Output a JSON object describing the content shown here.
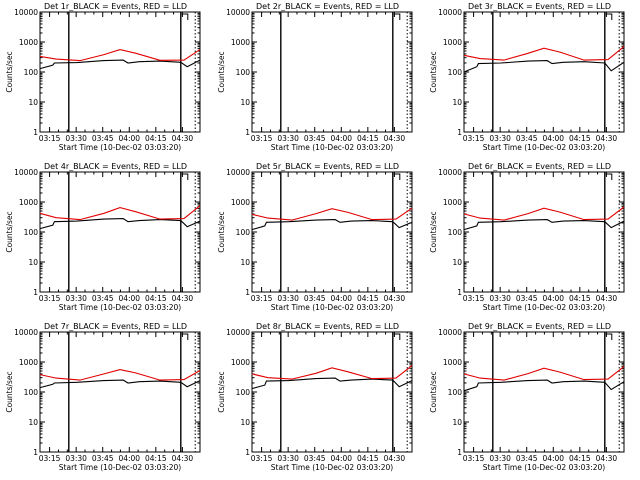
{
  "chart_data": [
    {
      "type": "line",
      "title": "Det 1r_BLACK = Events, RED = LLD",
      "xlabel": "Start Time (10-Dec-02 03:03:20)",
      "ylabel": "Counts/sec",
      "yscale": "log",
      "ylim": [
        1,
        10000
      ],
      "x_ticks": [
        "03:15",
        "03:30",
        "03:45",
        "04:00",
        "04:15",
        "04:30"
      ],
      "y_ticks": [
        "1",
        "10",
        "100",
        "1000",
        "10000"
      ],
      "series": [
        {
          "name": "Events",
          "color": "#000000",
          "x": [
            0,
            8,
            9,
            23,
            40,
            52,
            55,
            62,
            75,
            88,
            92,
            100
          ],
          "y": [
            130,
            170,
            200,
            205,
            240,
            250,
            200,
            220,
            230,
            210,
            150,
            250
          ]
        },
        {
          "name": "LLD",
          "color": "#e00000",
          "x": [
            0,
            10,
            25,
            40,
            50,
            60,
            75,
            90,
            100
          ],
          "y": [
            330,
            270,
            240,
            380,
            560,
            420,
            245,
            250,
            560
          ]
        }
      ]
    },
    {
      "type": "line",
      "title": "Det 2r_BLACK = Events, RED = LLD",
      "xlabel": "Start Time (10-Dec-02 03:03:20)",
      "ylabel": "Counts/sec",
      "yscale": "log",
      "ylim": [
        1,
        10000
      ],
      "x_ticks": [
        "03:15",
        "03:30",
        "03:45",
        "04:00",
        "04:15",
        "04:30"
      ],
      "y_ticks": [
        "1",
        "10",
        "100",
        "1000",
        "10000"
      ],
      "series": []
    },
    {
      "type": "line",
      "title": "Det 3r_BLACK = Events, RED = LLD",
      "xlabel": "Start Time (10-Dec-02 03:03:20)",
      "ylabel": "Counts/sec",
      "yscale": "log",
      "ylim": [
        1,
        10000
      ],
      "x_ticks": [
        "03:15",
        "03:30",
        "03:45",
        "04:00",
        "04:15",
        "04:30"
      ],
      "y_ticks": [
        "1",
        "10",
        "100",
        "1000",
        "10000"
      ],
      "series": [
        {
          "name": "Events",
          "color": "#000000",
          "x": [
            0,
            8,
            9,
            23,
            40,
            52,
            55,
            62,
            75,
            88,
            92,
            100
          ],
          "y": [
            100,
            150,
            190,
            200,
            230,
            240,
            190,
            210,
            220,
            200,
            110,
            210
          ]
        },
        {
          "name": "LLD",
          "color": "#e00000",
          "x": [
            0,
            10,
            25,
            40,
            50,
            60,
            75,
            90,
            100
          ],
          "y": [
            360,
            280,
            250,
            420,
            620,
            460,
            250,
            260,
            700
          ]
        }
      ]
    },
    {
      "type": "line",
      "title": "Det 4r_BLACK = Events, RED = LLD",
      "xlabel": "Start Time (10-Dec-02 03:03:20)",
      "ylabel": "Counts/sec",
      "yscale": "log",
      "ylim": [
        1,
        10000
      ],
      "x_ticks": [
        "03:15",
        "03:30",
        "03:45",
        "04:00",
        "04:15",
        "04:30"
      ],
      "y_ticks": [
        "1",
        "10",
        "100",
        "1000",
        "10000"
      ],
      "series": [
        {
          "name": "Events",
          "color": "#000000",
          "x": [
            0,
            8,
            9,
            23,
            40,
            52,
            55,
            62,
            75,
            88,
            92,
            100
          ],
          "y": [
            130,
            170,
            220,
            230,
            270,
            280,
            220,
            240,
            260,
            240,
            150,
            230
          ]
        },
        {
          "name": "LLD",
          "color": "#e00000",
          "x": [
            0,
            10,
            25,
            40,
            50,
            60,
            75,
            90,
            100
          ],
          "y": [
            420,
            300,
            260,
            420,
            650,
            470,
            270,
            280,
            750
          ]
        }
      ]
    },
    {
      "type": "line",
      "title": "Det 5r_BLACK = Events, RED = LLD",
      "xlabel": "Start Time (10-Dec-02 03:03:20)",
      "ylabel": "Counts/sec",
      "yscale": "log",
      "ylim": [
        1,
        10000
      ],
      "x_ticks": [
        "03:15",
        "03:30",
        "03:45",
        "04:00",
        "04:15",
        "04:30"
      ],
      "y_ticks": [
        "1",
        "10",
        "100",
        "1000",
        "10000"
      ],
      "series": [
        {
          "name": "Events",
          "color": "#000000",
          "x": [
            0,
            8,
            9,
            23,
            40,
            52,
            55,
            62,
            75,
            88,
            92,
            100
          ],
          "y": [
            120,
            160,
            210,
            220,
            250,
            260,
            210,
            230,
            240,
            220,
            140,
            210
          ]
        },
        {
          "name": "LLD",
          "color": "#e00000",
          "x": [
            0,
            10,
            25,
            40,
            50,
            60,
            75,
            90,
            100
          ],
          "y": [
            390,
            290,
            250,
            410,
            600,
            450,
            260,
            270,
            620
          ]
        }
      ]
    },
    {
      "type": "line",
      "title": "Det 6r_BLACK = Events, RED = LLD",
      "xlabel": "Start Time (10-Dec-02 03:03:20)",
      "ylabel": "Counts/sec",
      "yscale": "log",
      "ylim": [
        1,
        10000
      ],
      "x_ticks": [
        "03:15",
        "03:30",
        "03:45",
        "04:00",
        "04:15",
        "04:30"
      ],
      "y_ticks": [
        "1",
        "10",
        "100",
        "1000",
        "10000"
      ],
      "series": [
        {
          "name": "Events",
          "color": "#000000",
          "x": [
            0,
            8,
            9,
            23,
            40,
            52,
            55,
            62,
            75,
            88,
            92,
            100
          ],
          "y": [
            120,
            160,
            210,
            220,
            250,
            260,
            210,
            230,
            240,
            220,
            140,
            230
          ]
        },
        {
          "name": "LLD",
          "color": "#e00000",
          "x": [
            0,
            10,
            25,
            40,
            50,
            60,
            75,
            90,
            100
          ],
          "y": [
            400,
            290,
            250,
            410,
            620,
            460,
            260,
            270,
            680
          ]
        }
      ]
    },
    {
      "type": "line",
      "title": "Det 7r_BLACK = Events, RED = LLD",
      "xlabel": "Start Time (10-Dec-02 03:03:20)",
      "ylabel": "Counts/sec",
      "yscale": "log",
      "ylim": [
        1,
        10000
      ],
      "x_ticks": [
        "03:15",
        "03:30",
        "03:45",
        "04:00",
        "04:15",
        "04:30"
      ],
      "y_ticks": [
        "1",
        "10",
        "100",
        "1000",
        "10000"
      ],
      "series": [
        {
          "name": "Events",
          "color": "#000000",
          "x": [
            0,
            8,
            9,
            23,
            40,
            52,
            55,
            62,
            75,
            88,
            92,
            100
          ],
          "y": [
            140,
            180,
            200,
            210,
            240,
            250,
            200,
            220,
            230,
            210,
            150,
            240
          ]
        },
        {
          "name": "LLD",
          "color": "#e00000",
          "x": [
            0,
            10,
            25,
            40,
            50,
            60,
            75,
            90,
            100
          ],
          "y": [
            380,
            290,
            250,
            400,
            560,
            430,
            250,
            260,
            520
          ]
        }
      ]
    },
    {
      "type": "line",
      "title": "Det 8r_BLACK = Events, RED = LLD",
      "xlabel": "Start Time (10-Dec-02 03:03:20)",
      "ylabel": "Counts/sec",
      "yscale": "log",
      "ylim": [
        1,
        10000
      ],
      "x_ticks": [
        "03:15",
        "03:30",
        "03:45",
        "04:00",
        "04:15",
        "04:30"
      ],
      "y_ticks": [
        "1",
        "10",
        "100",
        "1000",
        "10000"
      ],
      "series": [
        {
          "name": "Events",
          "color": "#000000",
          "x": [
            0,
            8,
            9,
            23,
            40,
            52,
            55,
            62,
            75,
            88,
            92,
            100
          ],
          "y": [
            130,
            170,
            230,
            240,
            280,
            290,
            230,
            250,
            270,
            250,
            150,
            240
          ]
        },
        {
          "name": "LLD",
          "color": "#e00000",
          "x": [
            0,
            10,
            25,
            40,
            50,
            60,
            75,
            90,
            100
          ],
          "y": [
            400,
            300,
            270,
            420,
            640,
            470,
            280,
            290,
            760
          ]
        }
      ]
    },
    {
      "type": "line",
      "title": "Det 9r_BLACK = Events, RED = LLD",
      "xlabel": "Start Time (10-Dec-02 03:03:20)",
      "ylabel": "Counts/sec",
      "yscale": "log",
      "ylim": [
        1,
        10000
      ],
      "x_ticks": [
        "03:15",
        "03:30",
        "03:45",
        "04:00",
        "04:15",
        "04:30"
      ],
      "y_ticks": [
        "1",
        "10",
        "100",
        "1000",
        "10000"
      ],
      "series": [
        {
          "name": "Events",
          "color": "#000000",
          "x": [
            0,
            8,
            9,
            23,
            40,
            52,
            55,
            62,
            75,
            88,
            92,
            100
          ],
          "y": [
            110,
            150,
            200,
            210,
            240,
            250,
            200,
            220,
            230,
            210,
            120,
            220
          ]
        },
        {
          "name": "LLD",
          "color": "#e00000",
          "x": [
            0,
            10,
            25,
            40,
            50,
            60,
            75,
            90,
            100
          ],
          "y": [
            400,
            290,
            250,
            410,
            620,
            460,
            260,
            270,
            700
          ]
        }
      ]
    }
  ]
}
